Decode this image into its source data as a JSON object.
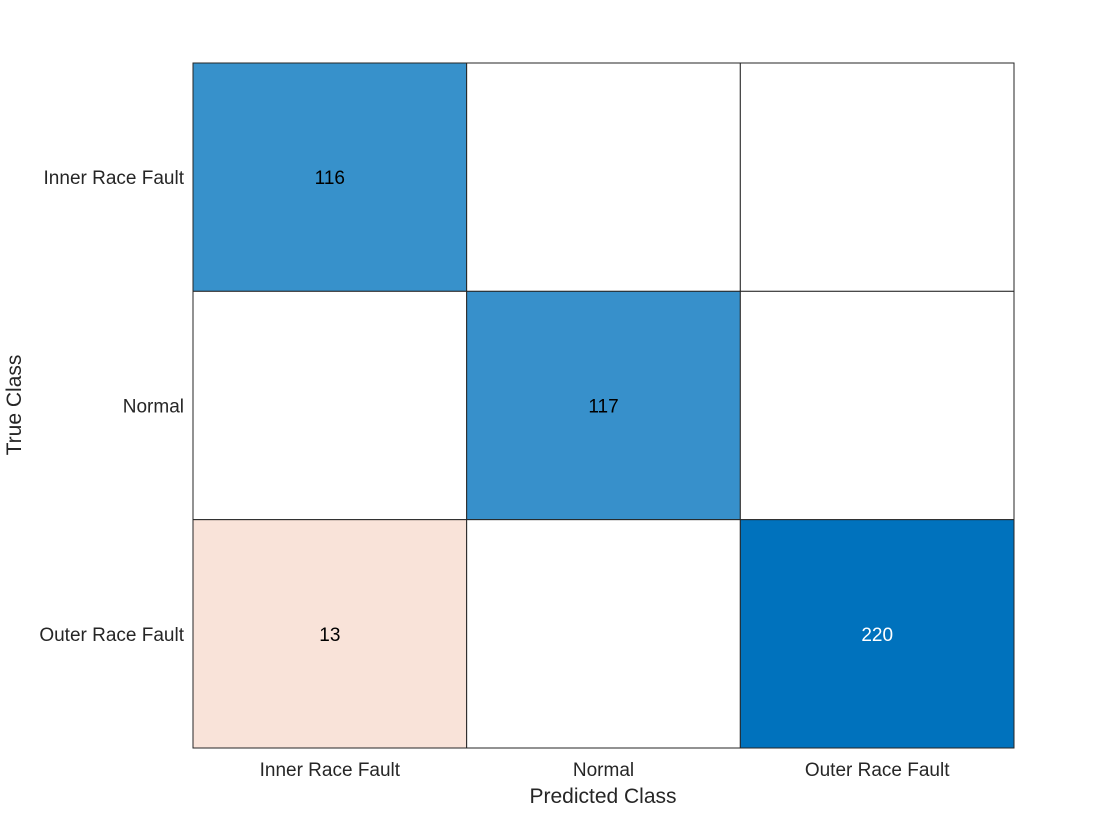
{
  "chart_data": {
    "type": "heatmap",
    "subtype": "confusion-matrix",
    "title": "",
    "xlabel": "Predicted Class",
    "ylabel": "True Class",
    "x_categories": [
      "Inner Race Fault",
      "Normal",
      "Outer Race Fault"
    ],
    "y_categories": [
      "Inner Race Fault",
      "Normal",
      "Outer Race Fault"
    ],
    "matrix": [
      [
        116,
        0,
        0
      ],
      [
        0,
        117,
        0
      ],
      [
        13,
        0,
        220
      ]
    ],
    "show_zero_cells": false,
    "colors": {
      "diagonal_high": "#0072bd",
      "diagonal_low": "#ffffff",
      "offdiagonal_high": "#d95319",
      "offdiagonal_low": "#ffffff",
      "text_dark": "#000000",
      "text_light": "#ffffff",
      "grid": "#262626"
    }
  }
}
